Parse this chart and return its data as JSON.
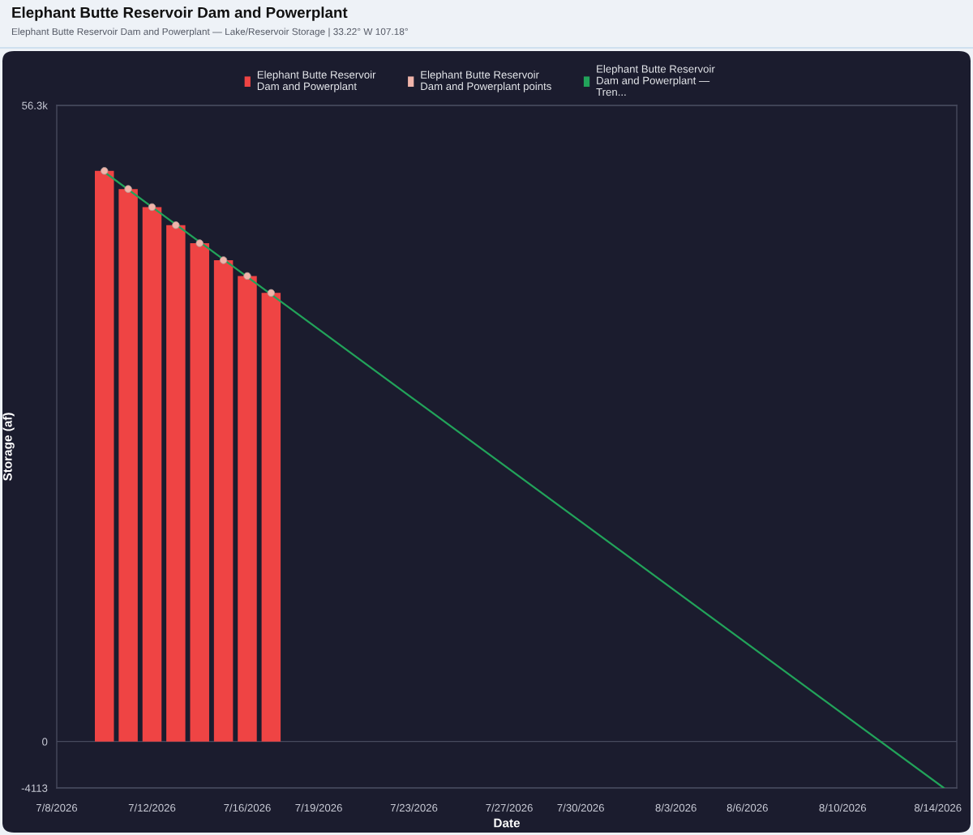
{
  "chart_data": {
    "type": "bar",
    "title": "Elephant Butte Reservoir Dam and Powerplant",
    "subtitle": "Elephant Butte Reservoir Dam and Powerplant — Lake/Reservoir Storage | 33.22° W 107.18°",
    "xlabel": "Date",
    "ylabel": "Storage (af)",
    "x": [
      "2026-07-10",
      "2026-07-11",
      "2026-07-12",
      "2026-07-13",
      "2026-07-14",
      "2026-07-15",
      "2026-07-16",
      "2026-07-17"
    ],
    "series": [
      {
        "name": "Elephant Butte Reservoir Dam and Powerplant",
        "color": "#ef4444",
        "values": [
          50500,
          48900,
          47300,
          45700,
          44100,
          42600,
          41200,
          39700
        ]
      },
      {
        "name": "Elephant Butte Reservoir Dam and Powerplant points",
        "type": "scatter",
        "color": "#f0b4aa",
        "marker": "circle",
        "values": [
          50500,
          48900,
          47300,
          45700,
          44100,
          42600,
          41200,
          39700
        ]
      },
      {
        "name": "Elephant Butte Reservoir Dam and Powerplant — Tren...",
        "type": "line",
        "color": "#22a35a",
        "marker": "none",
        "x": [
          "2026-07-10",
          "2026-08-14T06:00"
        ],
        "values": [
          50400,
          -4113
        ]
      }
    ],
    "xlim": [
      "2026-07-08",
      "2026-08-14T19:00"
    ],
    "xticks": [
      {
        "value": "2026-07-08",
        "label": "7/8/2026"
      },
      {
        "value": "2026-07-12",
        "label": "7/12/2026"
      },
      {
        "value": "2026-07-16",
        "label": "7/16/2026"
      },
      {
        "value": "2026-07-19",
        "label": "7/19/2026"
      },
      {
        "value": "2026-07-23",
        "label": "7/23/2026"
      },
      {
        "value": "2026-07-27",
        "label": "7/27/2026"
      },
      {
        "value": "2026-07-30",
        "label": "7/30/2026"
      },
      {
        "value": "2026-08-03",
        "label": "8/3/2026"
      },
      {
        "value": "2026-08-06",
        "label": "8/6/2026"
      },
      {
        "value": "2026-08-10",
        "label": "8/10/2026"
      },
      {
        "value": "2026-08-14",
        "label": "8/14/2026"
      }
    ],
    "ylim": [
      -4113,
      56300
    ],
    "yticks": [
      -4113,
      0,
      {
        "value": 56300,
        "label": "56.3k"
      }
    ],
    "grid": "y",
    "legend": "top"
  }
}
